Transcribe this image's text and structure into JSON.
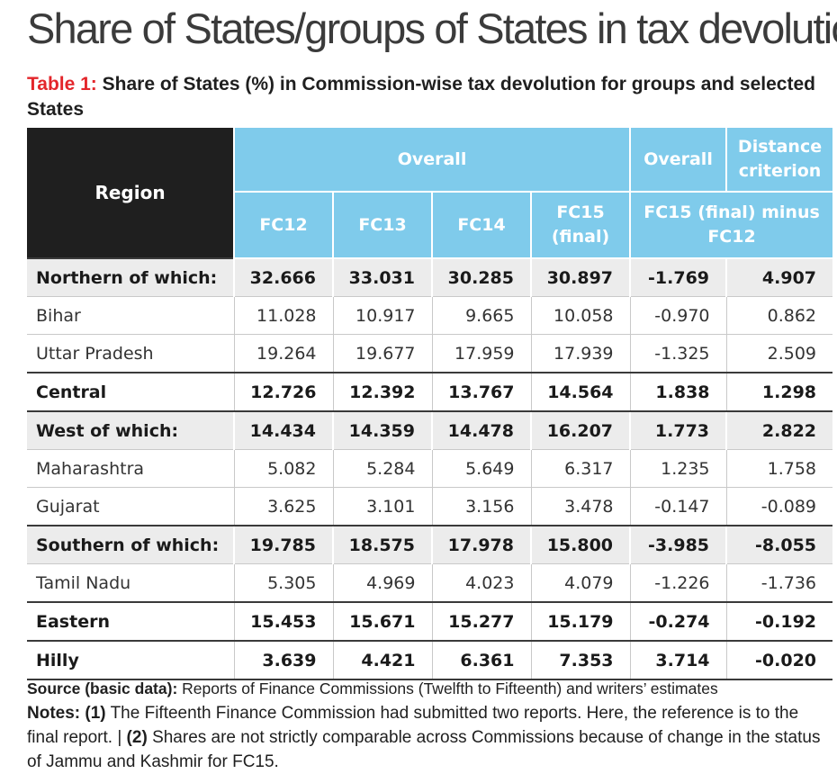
{
  "heading": "Share of States/groups of States in tax devolution",
  "table_caption": {
    "label": "Table 1:",
    "text": "Share of States (%) in Commission-wise tax devolution for groups and selected States"
  },
  "table": {
    "region_header": "Region",
    "overall_header": "Overall",
    "overall_header_2": "Overall",
    "distance_header": "Distance criterion",
    "sub_headers": [
      "FC12",
      "FC13",
      "FC14",
      "FC15 (final)"
    ],
    "diff_header": "FC15 (final) minus FC12",
    "rows": [
      {
        "region": "Northern of which:",
        "values": [
          "32.666",
          "33.031",
          "30.285",
          "30.897",
          "-1.769",
          "4.907"
        ]
      },
      {
        "region": "Bihar",
        "values": [
          "11.028",
          "10.917",
          "9.665",
          "10.058",
          "-0.970",
          "0.862"
        ]
      },
      {
        "region": "Uttar Pradesh",
        "values": [
          "19.264",
          "19.677",
          "17.959",
          "17.939",
          "-1.325",
          "2.509"
        ]
      },
      {
        "region": "Central",
        "values": [
          "12.726",
          "12.392",
          "13.767",
          "14.564",
          "1.838",
          "1.298"
        ]
      },
      {
        "region": "West of which:",
        "values": [
          "14.434",
          "14.359",
          "14.478",
          "16.207",
          "1.773",
          "2.822"
        ]
      },
      {
        "region": "Maharashtra",
        "values": [
          "5.082",
          "5.284",
          "5.649",
          "6.317",
          "1.235",
          "1.758"
        ]
      },
      {
        "region": "Gujarat",
        "values": [
          "3.625",
          "3.101",
          "3.156",
          "3.478",
          "-0.147",
          "-0.089"
        ]
      },
      {
        "region": "Southern of which:",
        "values": [
          "19.785",
          "18.575",
          "17.978",
          "15.800",
          "-3.985",
          "-8.055"
        ]
      },
      {
        "region": "Tamil Nadu",
        "values": [
          "5.305",
          "4.969",
          "4.023",
          "4.079",
          "-1.226",
          "-1.736"
        ]
      },
      {
        "region": "Eastern",
        "values": [
          "15.453",
          "15.671",
          "15.277",
          "15.179",
          "-0.274",
          "-0.192"
        ]
      },
      {
        "region": "Hilly",
        "values": [
          "3.639",
          "4.421",
          "6.361",
          "7.353",
          "3.714",
          "-0.020"
        ]
      }
    ]
  },
  "source": {
    "label": "Source (basic data):",
    "text": "Reports of Finance Commissions (Twelfth to Fifteenth) and writers’ estimates"
  },
  "notes": {
    "label": "Notes:",
    "n1_label": "(1)",
    "n1_text": "The Fifteenth Finance Commission had submitted two reports. Here, the reference is to the final report. |",
    "n2_label": "(2)",
    "n2_text": "Shares are not strictly comparable across Commissions because of change in the status of Jammu and Kashmir for FC15."
  }
}
